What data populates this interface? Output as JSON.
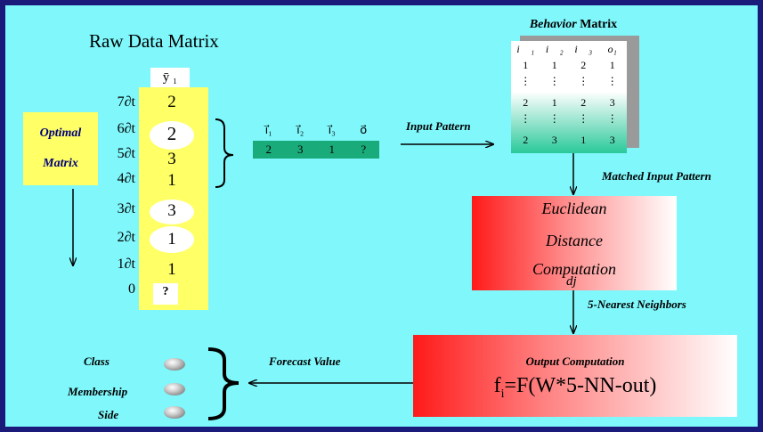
{
  "raw_data_matrix": {
    "title": "Raw Data Matrix",
    "y_header": "ȳ ₁",
    "rows": [
      {
        "time": "7∂t",
        "value": "2",
        "highlight": false
      },
      {
        "time": "6∂t",
        "value": "2",
        "highlight": true
      },
      {
        "time": "5∂t",
        "value": "3",
        "highlight": false
      },
      {
        "time": "4∂t",
        "value": "1",
        "highlight": false
      },
      {
        "time": "3∂t",
        "value": "3",
        "highlight": true
      },
      {
        "time": "2∂t",
        "value": "1",
        "highlight": true
      },
      {
        "time": "1∂t",
        "value": "1",
        "highlight": false
      },
      {
        "time": "0",
        "value": "?",
        "highlight": true
      }
    ]
  },
  "optimal_matrix": {
    "line1": "Optimal",
    "line2": "Matrix"
  },
  "input_pattern": {
    "headers": [
      "i⃗₁",
      "i⃗₂",
      "i⃗₃",
      "o⃗"
    ],
    "values": [
      "2",
      "3",
      "1",
      "?"
    ],
    "arrow_label": "Input Pattern"
  },
  "behavior_matrix": {
    "title_italic": "Behavior",
    "title_rest": " Matrix",
    "headers": [
      "i⃗ ₁",
      "i⃗ ₂",
      "i⃗ ₃",
      "o₁"
    ],
    "rows": [
      [
        "1",
        "1",
        "2",
        "1"
      ],
      [
        "⋮",
        "⋮",
        "⋮",
        "⋮"
      ],
      [
        "2",
        "1",
        "2",
        "3"
      ],
      [
        "⋮",
        "⋮",
        "⋮",
        "⋮"
      ],
      [
        "2",
        "3",
        "1",
        "3"
      ]
    ]
  },
  "matched_label": "Matched Input Pattern",
  "euclidean": {
    "line1": "Euclidean",
    "line2": "Distance",
    "line3": "Computation",
    "dj": "dj"
  },
  "nearest_label": "5-Nearest Neighbors",
  "output": {
    "title": "Output Computation",
    "formula_f": "f",
    "formula_sub": "i",
    "formula_rest": "=F(W*5-NN-out)"
  },
  "forecast_label": "Forecast Value",
  "class_labels": {
    "class": "Class",
    "membership": "Membership",
    "side": "Side"
  },
  "colors": {
    "background": "#7ff7fb",
    "frame": "#1a1a7a",
    "yellow": "#ffff66",
    "green": "#1aab7b",
    "red": "#ff1a1a"
  }
}
